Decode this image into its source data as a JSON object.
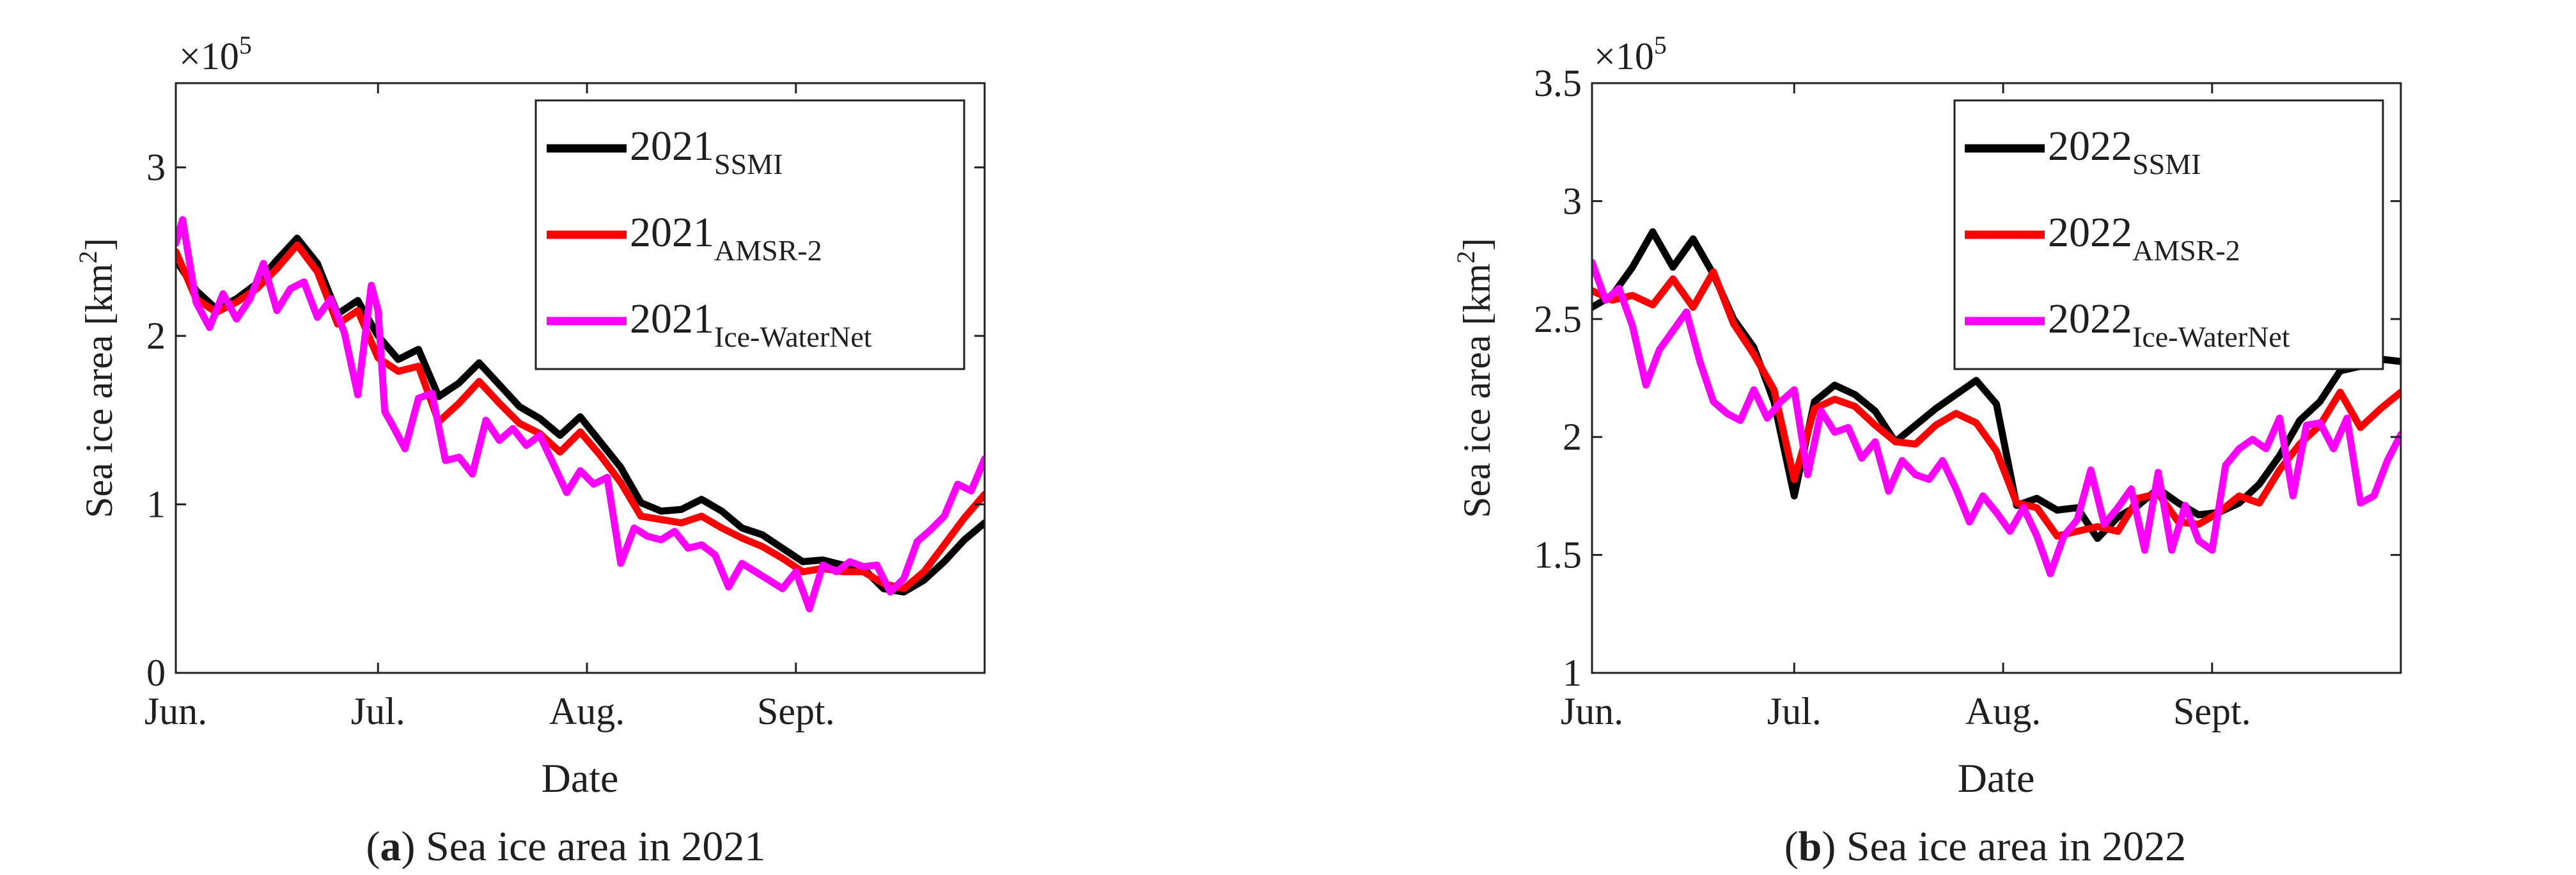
{
  "chart_data": [
    {
      "type": "line",
      "caption_letter": "a",
      "caption_text": ") Sea ice area in 2021",
      "caption_open": "(",
      "title": "",
      "xlabel": "Date",
      "ylabel_main": "Sea ice area [km",
      "ylabel_sup": "2",
      "ylabel_close": "]",
      "multiplier_base": "×10",
      "multiplier_exp": "5",
      "ylim": [
        0,
        3.5
      ],
      "xlim": [
        0,
        120
      ],
      "yticks": [
        0,
        1,
        2,
        3
      ],
      "yticklabels": [
        "0",
        "1",
        "2",
        "3"
      ],
      "xticks": [
        0,
        30,
        61,
        92
      ],
      "xticklabels": [
        "Jun.",
        "Jul.",
        "Aug.",
        "Sept."
      ],
      "legend_position": "top-right",
      "series": [
        {
          "name": "2021",
          "sub": "SSMI",
          "color": "#000000",
          "x": [
            0,
            3,
            6,
            9,
            12,
            15,
            18,
            21,
            24,
            27,
            30,
            33,
            36,
            39,
            42,
            45,
            48,
            51,
            54,
            57,
            60,
            63,
            66,
            69,
            72,
            75,
            78,
            81,
            84,
            87,
            90,
            93,
            96,
            99,
            102,
            105,
            108,
            111,
            114,
            117,
            120
          ],
          "y": [
            2.45,
            2.27,
            2.16,
            2.22,
            2.31,
            2.45,
            2.58,
            2.43,
            2.13,
            2.21,
            2.0,
            1.86,
            1.92,
            1.64,
            1.72,
            1.84,
            1.71,
            1.58,
            1.51,
            1.41,
            1.52,
            1.37,
            1.22,
            1.01,
            0.96,
            0.97,
            1.03,
            0.96,
            0.86,
            0.82,
            0.74,
            0.66,
            0.67,
            0.64,
            0.62,
            0.5,
            0.48,
            0.55,
            0.66,
            0.79,
            0.89
          ]
        },
        {
          "name": "2021",
          "sub": "AMSR-2",
          "color": "#ff0000",
          "x": [
            0,
            3,
            6,
            9,
            12,
            15,
            18,
            21,
            24,
            27,
            30,
            33,
            36,
            39,
            42,
            45,
            48,
            51,
            54,
            57,
            60,
            63,
            66,
            69,
            72,
            75,
            78,
            81,
            84,
            87,
            90,
            93,
            96,
            99,
            102,
            105,
            108,
            111,
            114,
            117,
            120
          ],
          "y": [
            2.5,
            2.22,
            2.14,
            2.2,
            2.28,
            2.4,
            2.54,
            2.38,
            2.07,
            2.15,
            1.87,
            1.79,
            1.82,
            1.49,
            1.6,
            1.73,
            1.6,
            1.48,
            1.42,
            1.31,
            1.43,
            1.29,
            1.13,
            0.93,
            0.91,
            0.89,
            0.93,
            0.86,
            0.8,
            0.75,
            0.68,
            0.6,
            0.62,
            0.6,
            0.6,
            0.53,
            0.5,
            0.6,
            0.76,
            0.92,
            1.06
          ]
        },
        {
          "name": "2021",
          "sub": "Ice-WaterNet",
          "color": "#ff00ff",
          "x": [
            0,
            1,
            3,
            5,
            7,
            9,
            11,
            13,
            15,
            17,
            19,
            21,
            23,
            25,
            27,
            29,
            30,
            31,
            32,
            34,
            36,
            38,
            40,
            42,
            44,
            46,
            48,
            50,
            52,
            54,
            56,
            58,
            60,
            62,
            64,
            66,
            68,
            70,
            72,
            74,
            76,
            78,
            80,
            82,
            84,
            86,
            88,
            90,
            92,
            94,
            96,
            98,
            100,
            102,
            104,
            106,
            108,
            110,
            112,
            114,
            116,
            118,
            120
          ],
          "y": [
            2.55,
            2.69,
            2.2,
            2.05,
            2.25,
            2.1,
            2.22,
            2.43,
            2.15,
            2.28,
            2.32,
            2.11,
            2.22,
            2.02,
            1.65,
            2.3,
            2.15,
            1.55,
            1.48,
            1.33,
            1.63,
            1.66,
            1.26,
            1.28,
            1.18,
            1.5,
            1.38,
            1.45,
            1.35,
            1.41,
            1.24,
            1.07,
            1.2,
            1.12,
            1.16,
            0.65,
            0.86,
            0.81,
            0.79,
            0.84,
            0.74,
            0.76,
            0.7,
            0.51,
            0.65,
            0.6,
            0.55,
            0.5,
            0.6,
            0.38,
            0.64,
            0.6,
            0.66,
            0.63,
            0.64,
            0.48,
            0.56,
            0.78,
            0.85,
            0.93,
            1.12,
            1.08,
            1.27
          ]
        }
      ]
    },
    {
      "type": "line",
      "caption_letter": "b",
      "caption_text": ") Sea ice area in 2022",
      "caption_open": "(",
      "title": "",
      "xlabel": "Date",
      "ylabel_main": "Sea ice area [km",
      "ylabel_sup": "2",
      "ylabel_close": "]",
      "multiplier_base": "×10",
      "multiplier_exp": "5",
      "ylim": [
        1,
        3.5
      ],
      "xlim": [
        0,
        120
      ],
      "yticks": [
        1,
        1.5,
        2,
        2.5,
        3,
        3.5
      ],
      "yticklabels": [
        "1",
        "1.5",
        "2",
        "2.5",
        "3",
        "3.5"
      ],
      "xticks": [
        0,
        30,
        61,
        92
      ],
      "xticklabels": [
        "Jun.",
        "Jul.",
        "Aug.",
        "Sept."
      ],
      "legend_position": "top-right",
      "series": [
        {
          "name": "2022",
          "sub": "SSMI",
          "color": "#000000",
          "x": [
            0,
            3,
            6,
            9,
            12,
            15,
            18,
            21,
            24,
            27,
            30,
            33,
            36,
            39,
            42,
            45,
            48,
            51,
            54,
            57,
            60,
            63,
            66,
            69,
            72,
            75,
            78,
            81,
            84,
            87,
            90,
            93,
            96,
            99,
            102,
            105,
            108,
            111,
            114,
            117,
            120
          ],
          "y": [
            2.55,
            2.6,
            2.72,
            2.87,
            2.72,
            2.84,
            2.69,
            2.5,
            2.38,
            2.15,
            1.75,
            2.15,
            2.22,
            2.18,
            2.11,
            1.98,
            2.05,
            2.12,
            2.18,
            2.24,
            2.14,
            1.71,
            1.74,
            1.69,
            1.7,
            1.57,
            1.66,
            1.71,
            1.78,
            1.72,
            1.67,
            1.68,
            1.72,
            1.8,
            1.92,
            2.07,
            2.15,
            2.28,
            2.3,
            2.33,
            2.32
          ]
        },
        {
          "name": "2022",
          "sub": "AMSR-2",
          "color": "#ff0000",
          "x": [
            0,
            3,
            6,
            9,
            12,
            15,
            18,
            21,
            24,
            27,
            30,
            33,
            36,
            39,
            42,
            45,
            48,
            51,
            54,
            57,
            60,
            63,
            66,
            69,
            72,
            75,
            78,
            81,
            84,
            87,
            90,
            93,
            96,
            99,
            102,
            105,
            108,
            111,
            114,
            117,
            120
          ],
          "y": [
            2.62,
            2.58,
            2.6,
            2.56,
            2.67,
            2.55,
            2.7,
            2.48,
            2.35,
            2.2,
            1.82,
            2.12,
            2.16,
            2.13,
            2.05,
            1.98,
            1.97,
            2.05,
            2.1,
            2.06,
            1.94,
            1.72,
            1.7,
            1.58,
            1.6,
            1.62,
            1.6,
            1.74,
            1.76,
            1.64,
            1.63,
            1.68,
            1.75,
            1.72,
            1.86,
            1.97,
            2.05,
            2.19,
            2.04,
            2.12,
            2.19
          ]
        },
        {
          "name": "2022",
          "sub": "Ice-WaterNet",
          "color": "#ff00ff",
          "x": [
            0,
            2,
            4,
            6,
            8,
            10,
            12,
            14,
            16,
            18,
            20,
            22,
            24,
            26,
            28,
            30,
            32,
            34,
            36,
            38,
            40,
            42,
            44,
            46,
            48,
            50,
            52,
            54,
            56,
            58,
            60,
            62,
            64,
            66,
            68,
            70,
            72,
            74,
            76,
            78,
            80,
            82,
            84,
            86,
            88,
            90,
            92,
            94,
            96,
            98,
            100,
            102,
            104,
            106,
            108,
            110,
            112,
            114,
            116,
            118,
            120
          ],
          "y": [
            2.74,
            2.58,
            2.63,
            2.47,
            2.22,
            2.37,
            2.45,
            2.53,
            2.32,
            2.15,
            2.1,
            2.07,
            2.2,
            2.08,
            2.15,
            2.2,
            1.84,
            2.11,
            2.02,
            2.04,
            1.91,
            1.98,
            1.77,
            1.9,
            1.84,
            1.82,
            1.9,
            1.78,
            1.64,
            1.75,
            1.68,
            1.6,
            1.7,
            1.58,
            1.42,
            1.58,
            1.65,
            1.86,
            1.63,
            1.7,
            1.78,
            1.52,
            1.85,
            1.52,
            1.71,
            1.56,
            1.52,
            1.88,
            1.95,
            1.99,
            1.95,
            2.08,
            1.75,
            2.05,
            2.06,
            1.95,
            2.08,
            1.72,
            1.75,
            1.9,
            2.01
          ]
        }
      ]
    }
  ]
}
